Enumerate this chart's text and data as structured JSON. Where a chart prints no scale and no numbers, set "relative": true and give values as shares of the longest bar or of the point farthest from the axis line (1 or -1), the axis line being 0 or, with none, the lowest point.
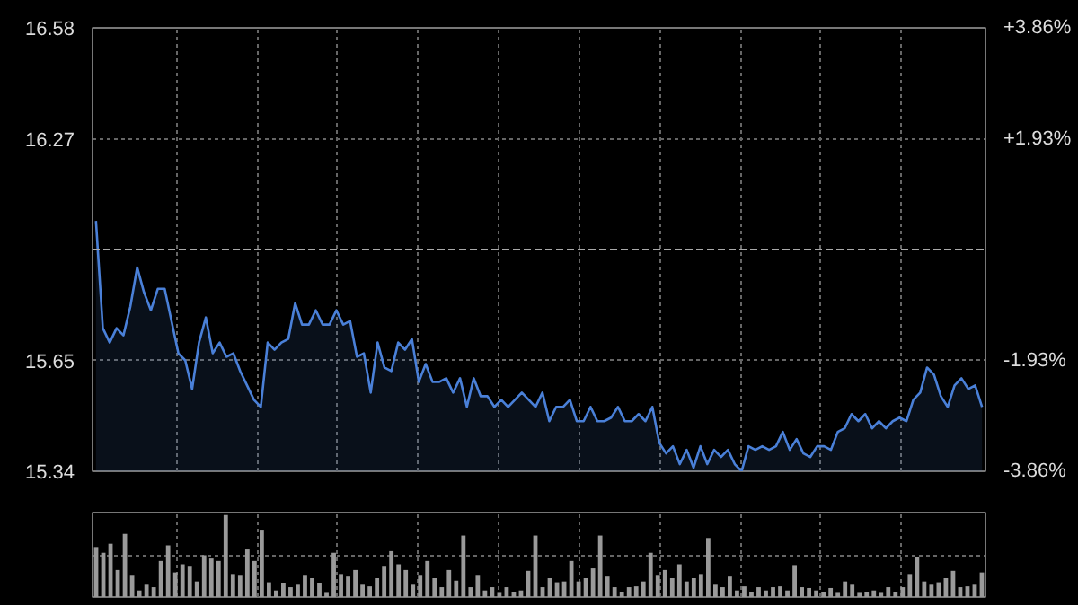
{
  "chart_data": [
    {
      "type": "area",
      "categories": [
        null,
        null,
        null,
        null,
        null,
        null,
        null,
        null,
        null,
        null,
        null,
        null,
        null,
        null,
        null,
        null,
        null,
        null,
        null,
        null,
        null,
        null,
        null,
        null,
        null,
        null,
        null,
        null,
        null,
        null,
        null,
        null,
        null,
        null,
        null,
        null,
        null,
        null,
        null,
        null,
        null,
        null,
        null,
        null,
        null,
        null,
        null,
        null,
        null,
        null,
        null,
        null,
        null,
        null,
        null,
        null,
        null,
        null,
        null,
        null,
        null,
        null,
        null,
        null,
        null,
        null,
        null,
        null,
        null,
        null,
        null,
        null,
        null,
        null,
        null,
        null,
        null,
        null,
        null,
        null,
        null,
        null,
        null,
        null,
        null,
        null,
        null,
        null,
        null,
        null,
        null,
        null,
        null,
        null,
        null,
        null,
        null,
        null,
        null,
        null,
        null,
        null,
        null,
        null,
        null,
        null,
        null,
        null,
        null,
        null,
        null,
        null,
        null,
        null,
        null,
        null,
        null,
        null,
        null,
        null,
        null,
        null,
        null,
        null,
        null,
        null,
        null,
        null,
        null,
        null
      ],
      "series": [
        {
          "color": "#4a80d8",
          "values": [
            16.04,
            15.74,
            15.7,
            15.74,
            15.72,
            15.8,
            15.91,
            15.84,
            15.79,
            15.85,
            15.85,
            15.76,
            15.67,
            15.65,
            15.57,
            15.7,
            15.77,
            15.67,
            15.7,
            15.66,
            15.67,
            15.62,
            15.58,
            15.54,
            15.52,
            15.7,
            15.68,
            15.7,
            15.71,
            15.81,
            15.75,
            15.75,
            15.79,
            15.75,
            15.75,
            15.79,
            15.75,
            15.76,
            15.66,
            15.67,
            15.56,
            15.7,
            15.63,
            15.62,
            15.7,
            15.68,
            15.71,
            15.59,
            15.64,
            15.59,
            15.59,
            15.6,
            15.56,
            15.6,
            15.52,
            15.6,
            15.55,
            15.55,
            15.52,
            15.54,
            15.52,
            15.54,
            15.56,
            15.54,
            15.52,
            15.56,
            15.48,
            15.52,
            15.52,
            15.54,
            15.48,
            15.48,
            15.52,
            15.48,
            15.48,
            15.49,
            15.52,
            15.48,
            15.48,
            15.5,
            15.48,
            15.52,
            15.42,
            15.39,
            15.41,
            15.36,
            15.4,
            15.35,
            15.41,
            15.36,
            15.4,
            15.38,
            15.4,
            15.36,
            15.34,
            15.41,
            15.4,
            15.41,
            15.4,
            15.41,
            15.45,
            15.4,
            15.43,
            15.39,
            15.38,
            15.41,
            15.41,
            15.4,
            15.45,
            15.46,
            15.5,
            15.48,
            15.5,
            15.46,
            15.48,
            15.46,
            15.48,
            15.49,
            15.48,
            15.54,
            15.56,
            15.63,
            15.61,
            15.55,
            15.52,
            15.58,
            15.6,
            15.57,
            15.58,
            15.52
          ]
        }
      ],
      "ylim": [
        15.34,
        16.58
      ],
      "yticks": [
        15.34,
        15.65,
        16.27,
        16.58
      ],
      "y2lim": [
        -3.86,
        3.86
      ],
      "y2ticks": [
        {
          "value": -3.86,
          "label": "-3.86%"
        },
        {
          "value": -1.93,
          "label": "-1.93%"
        },
        {
          "value": 1.93,
          "label": "+1.93%"
        },
        {
          "value": 3.86,
          "label": "+3.86%"
        }
      ],
      "ref_lines": [
        {
          "axis": "y",
          "value": 15.96,
          "line_style": "dashed",
          "color": "#aaaaaa"
        }
      ],
      "grid": true,
      "tick_labels": "y"
    },
    {
      "type": "bar",
      "relative": true,
      "grid": true,
      "tick_labels": false,
      "categories": [
        null,
        null,
        null,
        null,
        null,
        null,
        null,
        null,
        null,
        null,
        null,
        null,
        null,
        null,
        null,
        null,
        null,
        null,
        null,
        null,
        null,
        null,
        null,
        null,
        null,
        null,
        null,
        null,
        null,
        null,
        null,
        null,
        null,
        null,
        null,
        null,
        null,
        null,
        null,
        null,
        null,
        null,
        null,
        null,
        null,
        null,
        null,
        null,
        null,
        null,
        null,
        null,
        null,
        null,
        null,
        null,
        null,
        null,
        null,
        null,
        null,
        null,
        null,
        null,
        null,
        null,
        null,
        null,
        null,
        null,
        null,
        null,
        null,
        null,
        null,
        null,
        null,
        null,
        null,
        null,
        null,
        null,
        null,
        null,
        null,
        null,
        null,
        null,
        null,
        null,
        null,
        null,
        null,
        null,
        null,
        null,
        null,
        null,
        null,
        null,
        null,
        null,
        null,
        null,
        null,
        null,
        null,
        null,
        null,
        null,
        null,
        null,
        null,
        null,
        null,
        null,
        null,
        null,
        null,
        null,
        null,
        null,
        null,
        null
      ],
      "series": [
        {
          "color": "#9a9a9a",
          "values": [
            0.61,
            0.54,
            0.65,
            0.33,
            0.77,
            0.26,
            0.08,
            0.15,
            0.12,
            0.44,
            0.63,
            0.3,
            0.4,
            0.37,
            0.19,
            0.51,
            0.47,
            0.44,
            1.0,
            0.27,
            0.26,
            0.58,
            0.44,
            0.81,
            0.18,
            0.08,
            0.17,
            0.12,
            0.15,
            0.26,
            0.23,
            0.17,
            0.05,
            0.54,
            0.27,
            0.25,
            0.33,
            0.15,
            0.13,
            0.23,
            0.37,
            0.56,
            0.4,
            0.33,
            0.15,
            0.26,
            0.44,
            0.23,
            0.12,
            0.33,
            0.2,
            0.75,
            0.12,
            0.26,
            0.08,
            0.12,
            0.05,
            0.12,
            0.06,
            0.08,
            0.32,
            0.75,
            0.12,
            0.23,
            0.18,
            0.19,
            0.44,
            0.19,
            0.23,
            0.35,
            0.75,
            0.25,
            0.12,
            0.06,
            0.12,
            0.13,
            0.19,
            0.54,
            0.26,
            0.33,
            0.23,
            0.4,
            0.19,
            0.23,
            0.27,
            0.72,
            0.15,
            0.12,
            0.25,
            0.08,
            0.13,
            0.06,
            0.12,
            0.08,
            0.12,
            0.13,
            0.08,
            0.39,
            0.12,
            0.11,
            0.08,
            0.06,
            0.11,
            0.05,
            0.19,
            0.15,
            0.05,
            0.06,
            0.08,
            0.05,
            0.12,
            0.06,
            0.12,
            0.27,
            0.49,
            0.19,
            0.15,
            0.18,
            0.23,
            0.32,
            0.12,
            0.13,
            0.15,
            0.3
          ]
        }
      ]
    }
  ]
}
